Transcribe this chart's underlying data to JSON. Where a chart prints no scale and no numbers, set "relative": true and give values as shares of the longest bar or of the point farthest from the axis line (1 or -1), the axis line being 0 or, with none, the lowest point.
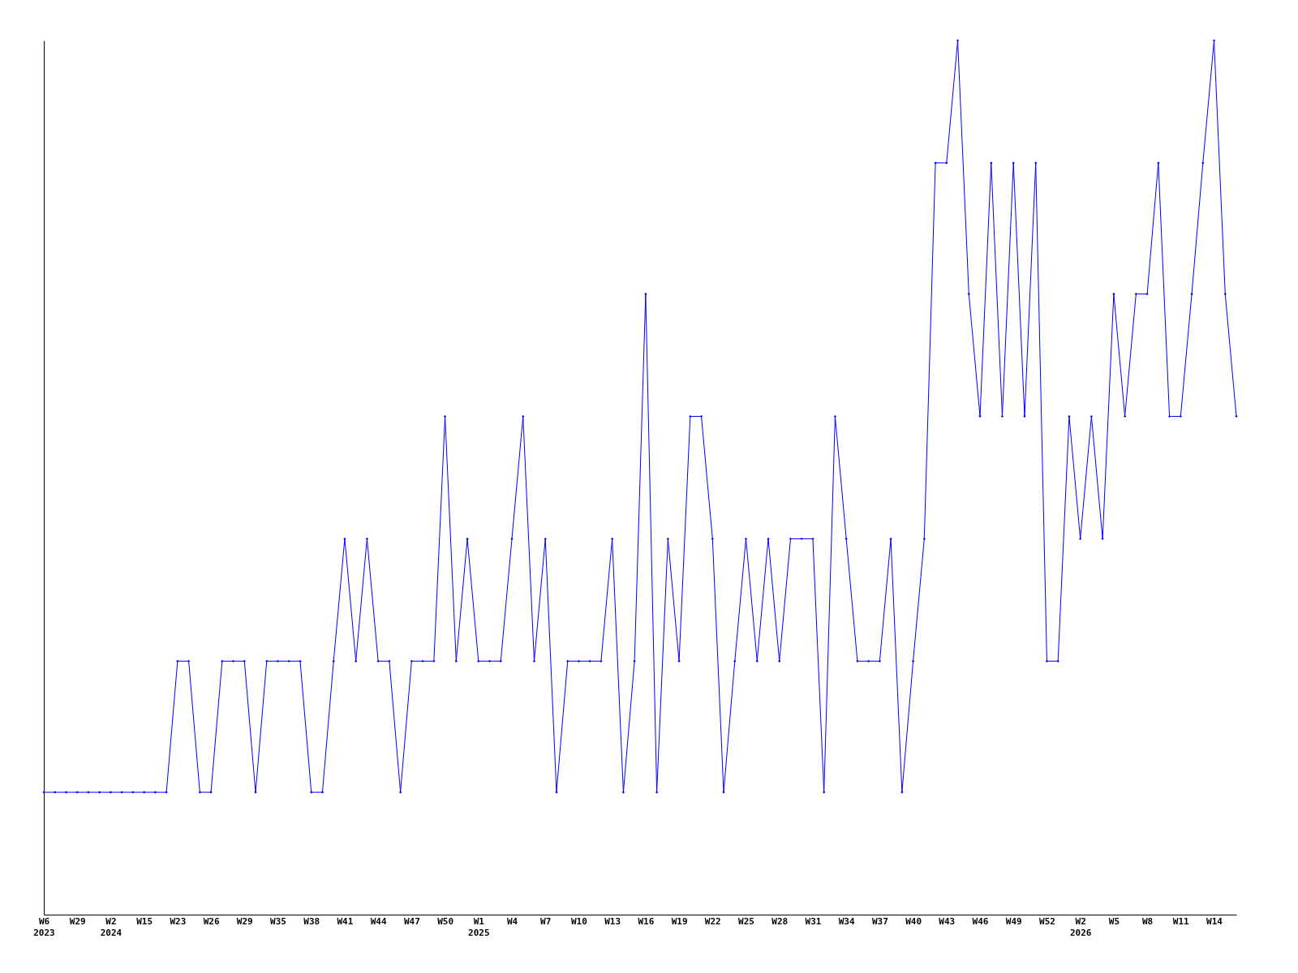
{
  "chart_data": {
    "type": "line",
    "relative": true,
    "marker": "diamond",
    "grid": false,
    "categories": [
      "W6 2023",
      null,
      null,
      "W29",
      null,
      null,
      "W2 2024",
      null,
      null,
      "W15",
      null,
      null,
      "W23",
      null,
      null,
      "W26",
      null,
      null,
      "W29",
      null,
      null,
      "W35",
      null,
      null,
      "W38",
      null,
      null,
      "W41",
      null,
      null,
      "W44",
      null,
      null,
      "W47",
      null,
      null,
      "W50",
      null,
      null,
      "W1 2025",
      null,
      null,
      "W4",
      null,
      null,
      "W7",
      null,
      null,
      "W10",
      null,
      null,
      "W13",
      null,
      null,
      "W16",
      null,
      null,
      "W19",
      null,
      null,
      "W22",
      null,
      null,
      "W25",
      null,
      null,
      "W28",
      null,
      null,
      "W31",
      null,
      null,
      "W34",
      null,
      null,
      "W37",
      null,
      null,
      "W40",
      null,
      null,
      "W43",
      null,
      null,
      "W46",
      null,
      null,
      "W49",
      null,
      null,
      "W52",
      null,
      null,
      "W2 2026",
      null,
      null,
      "W5",
      null,
      null,
      "W8",
      null,
      null,
      "W11",
      null,
      null,
      "W14",
      null,
      null
    ],
    "series": [
      {
        "color": "#0000ff",
        "values": [
          0.14,
          0.14,
          0.14,
          0.14,
          0.14,
          0.14,
          0.14,
          0.14,
          0.14,
          0.14,
          0.14,
          0.14,
          0.29,
          0.29,
          0.14,
          0.14,
          0.29,
          0.29,
          0.29,
          0.14,
          0.29,
          0.29,
          0.29,
          0.29,
          0.14,
          0.14,
          0.29,
          0.43,
          0.29,
          0.43,
          0.29,
          0.29,
          0.14,
          0.29,
          0.29,
          0.29,
          0.57,
          0.29,
          0.43,
          0.29,
          0.29,
          0.29,
          0.43,
          0.57,
          0.29,
          0.43,
          0.14,
          0.29,
          0.29,
          0.29,
          0.29,
          0.43,
          0.14,
          0.29,
          0.71,
          0.14,
          0.43,
          0.29,
          0.57,
          0.57,
          0.43,
          0.14,
          0.29,
          0.43,
          0.29,
          0.43,
          0.29,
          0.43,
          0.43,
          0.43,
          0.14,
          0.57,
          0.43,
          0.29,
          0.29,
          0.29,
          0.43,
          0.14,
          0.29,
          0.43,
          0.86,
          0.86,
          1,
          0.71,
          0.57,
          0.86,
          0.57,
          0.86,
          0.57,
          0.86,
          0.29,
          0.29,
          0.57,
          0.43,
          0.57,
          0.43,
          0.71,
          0.57,
          0.71,
          0.71,
          0.86,
          0.57,
          0.57,
          0.71,
          0.86,
          1,
          0.71,
          0.57
        ]
      }
    ]
  }
}
